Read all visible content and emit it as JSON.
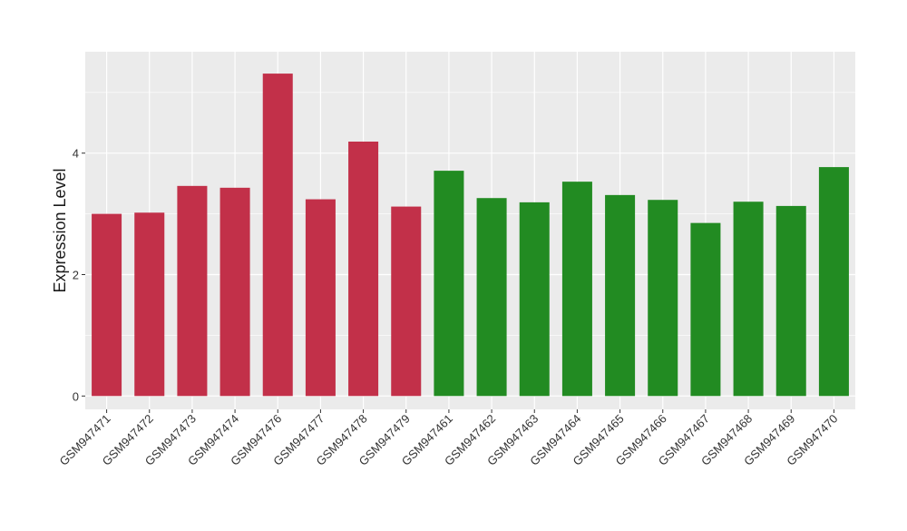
{
  "colors": {
    "group1": "#c23049",
    "group2": "#228b22",
    "panel": "#ebebeb",
    "grid_major": "#ffffff",
    "text": "#1a1a1a",
    "tick": "#333333"
  },
  "chart_data": {
    "type": "bar",
    "title": "",
    "xlabel": "",
    "ylabel": "Expression Level",
    "ylim": [
      -0.22,
      5.67
    ],
    "yticks": [
      0,
      2,
      4
    ],
    "ytick_labels": [
      "0",
      "2",
      "4"
    ],
    "grid": true,
    "legend": "none",
    "categories": [
      "GSM947471",
      "GSM947472",
      "GSM947473",
      "GSM947474",
      "GSM947476",
      "GSM947477",
      "GSM947478",
      "GSM947479",
      "GSM947461",
      "GSM947462",
      "GSM947463",
      "GSM947464",
      "GSM947465",
      "GSM947466",
      "GSM947467",
      "GSM947468",
      "GSM947469",
      "GSM947470"
    ],
    "values": [
      3.0,
      3.02,
      3.46,
      3.43,
      5.31,
      3.24,
      4.19,
      3.12,
      3.71,
      3.26,
      3.19,
      3.53,
      3.31,
      3.23,
      2.85,
      3.2,
      3.13,
      3.77
    ],
    "bar_colors": [
      "group1",
      "group1",
      "group1",
      "group1",
      "group1",
      "group1",
      "group1",
      "group1",
      "group2",
      "group2",
      "group2",
      "group2",
      "group2",
      "group2",
      "group2",
      "group2",
      "group2",
      "group2"
    ]
  }
}
